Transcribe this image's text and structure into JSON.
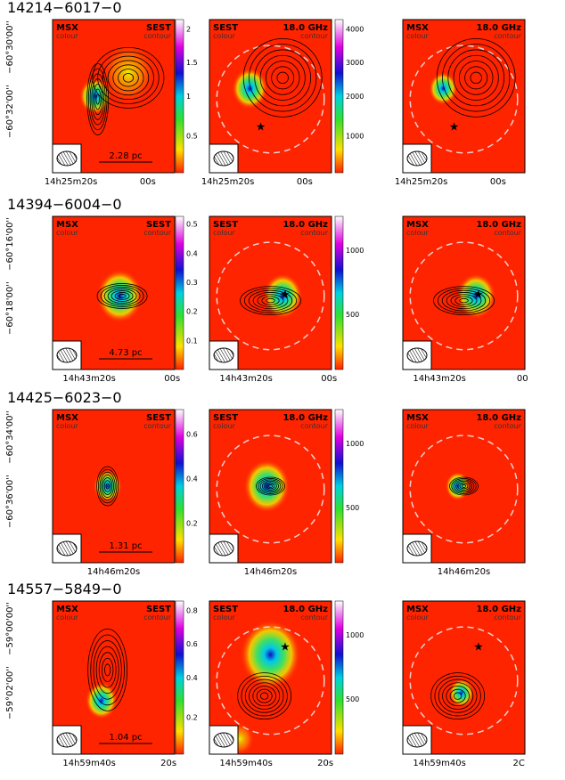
{
  "rows": [
    {
      "source": "14214−6017−0",
      "y_ticks": [
        "−60°30'00''",
        "−60°32'00''"
      ],
      "panels": [
        {
          "left_label": "MSX",
          "left_sub": "colour",
          "right_label": "SEST",
          "right_sub": "contour",
          "scale_bar": "2.28 pc",
          "colorbar_ticks": [
            "2",
            "1.5",
            "1",
            "0.5"
          ],
          "x_ticks": [
            "14h25m20s",
            "00s"
          ]
        },
        {
          "left_label": "SEST",
          "left_sub": "colour",
          "right_label": "18.0 GHz",
          "right_sub": "contour",
          "colorbar_ticks": [
            "4000",
            "3000",
            "2000",
            "1000"
          ],
          "x_ticks": [
            "14h25m20s",
            "00s"
          ]
        },
        {
          "left_label": "MSX",
          "left_sub": "colour",
          "right_label": "18.0 GHz",
          "right_sub": "contour",
          "x_ticks": [
            "14h25m20s",
            "00s"
          ]
        }
      ]
    },
    {
      "source": "14394−6004−0",
      "y_ticks": [
        "−60°16'00''",
        "−60°18'00''"
      ],
      "panels": [
        {
          "left_label": "MSX",
          "left_sub": "colour",
          "right_label": "SEST",
          "right_sub": "contour",
          "scale_bar": "4.73 pc",
          "colorbar_ticks": [
            "0.5",
            "0.4",
            "0.3",
            "0.2",
            "0.1"
          ],
          "x_ticks": [
            "14h43m20s",
            "00s"
          ]
        },
        {
          "left_label": "SEST",
          "left_sub": "colour",
          "right_label": "18.0 GHz",
          "right_sub": "contour",
          "colorbar_ticks": [
            "1000",
            "500"
          ],
          "x_ticks": [
            "14h43m20s",
            "00s"
          ]
        },
        {
          "left_label": "MSX",
          "left_sub": "colour",
          "right_label": "18.0 GHz",
          "right_sub": "contour",
          "x_ticks": [
            "14h43m20s",
            "00"
          ]
        }
      ]
    },
    {
      "source": "14425−6023−0",
      "y_ticks": [
        "−60°34'00''",
        "−60°36'00''"
      ],
      "panels": [
        {
          "left_label": "MSX",
          "left_sub": "colour",
          "right_label": "SEST",
          "right_sub": "contour",
          "scale_bar": "1.31 pc",
          "colorbar_ticks": [
            "0.6",
            "0.4",
            "0.2"
          ],
          "x_ticks": [
            "14h46m20s"
          ]
        },
        {
          "left_label": "SEST",
          "left_sub": "colour",
          "right_label": "18.0 GHz",
          "right_sub": "contour",
          "colorbar_ticks": [
            "1000",
            "500"
          ],
          "x_ticks": [
            "14h46m20s"
          ]
        },
        {
          "left_label": "MSX",
          "left_sub": "colour",
          "right_label": "18.0 GHz",
          "right_sub": "contour",
          "x_ticks": [
            "14h46m20s"
          ]
        }
      ]
    },
    {
      "source": "14557−5849−0",
      "y_ticks": [
        "−59°00'00''",
        "−59°02'00''"
      ],
      "panels": [
        {
          "left_label": "MSX",
          "left_sub": "colour",
          "right_label": "SEST",
          "right_sub": "contour",
          "scale_bar": "1.04 pc",
          "colorbar_ticks": [
            "0.8",
            "0.6",
            "0.4",
            "0.2"
          ],
          "x_ticks": [
            "14h59m40s",
            "20s"
          ]
        },
        {
          "left_label": "SEST",
          "left_sub": "colour",
          "right_label": "18.0 GHz",
          "right_sub": "contour",
          "colorbar_ticks": [
            "1000",
            "500"
          ],
          "x_ticks": [
            "14h59m40s",
            "20s"
          ]
        },
        {
          "left_label": "MSX",
          "left_sub": "colour",
          "right_label": "18.0 GHz",
          "right_sub": "contour",
          "x_ticks": [
            "14h59m40s",
            "2C"
          ]
        }
      ]
    }
  ]
}
